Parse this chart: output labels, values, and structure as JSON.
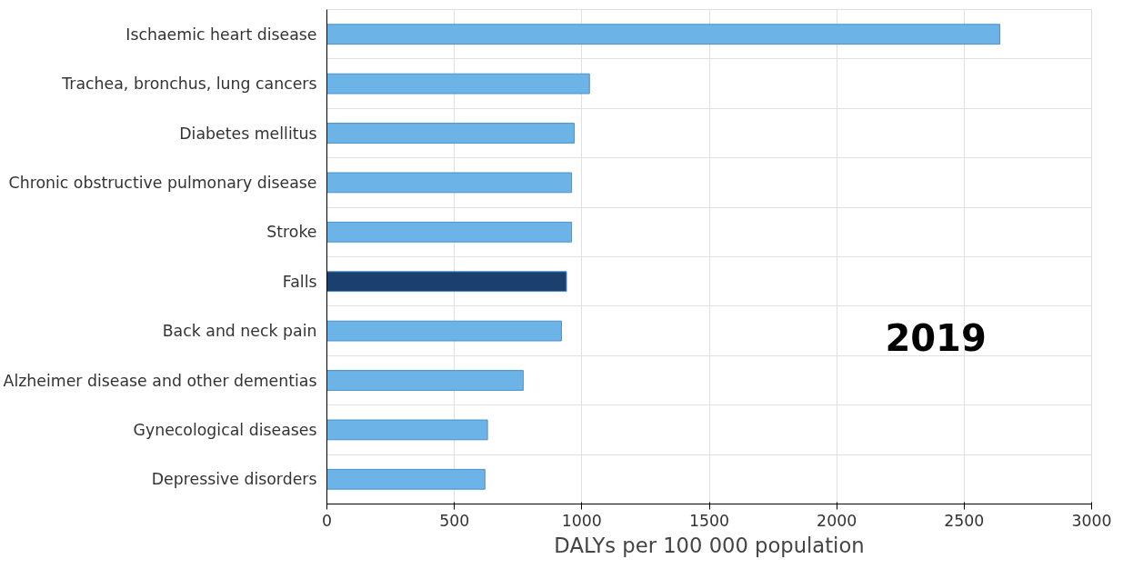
{
  "chart_data": {
    "type": "bar",
    "orientation": "horizontal",
    "xlabel": "DALYs per 100 000 population",
    "categories": [
      "Ischaemic heart disease",
      "Trachea, bronchus, lung cancers",
      "Diabetes mellitus",
      "Chronic obstructive pulmonary disease",
      "Stroke",
      "Falls",
      "Back and neck pain",
      "Alzheimer disease and other dementias",
      "Gynecological diseases",
      "Depressive disorders"
    ],
    "values": [
      2640,
      1030,
      970,
      960,
      960,
      940,
      920,
      770,
      630,
      620
    ],
    "colors": [
      "#6cb4e8",
      "#6cb4e8",
      "#6cb4e8",
      "#6cb4e8",
      "#6cb4e8",
      "#1b3f6e",
      "#6cb4e8",
      "#6cb4e8",
      "#6cb4e8",
      "#6cb4e8"
    ],
    "xlim": [
      0,
      3000
    ],
    "xticks": [
      0,
      500,
      1000,
      1500,
      2000,
      2500,
      3000
    ],
    "grid": true,
    "annotations": [
      "2019"
    ]
  }
}
